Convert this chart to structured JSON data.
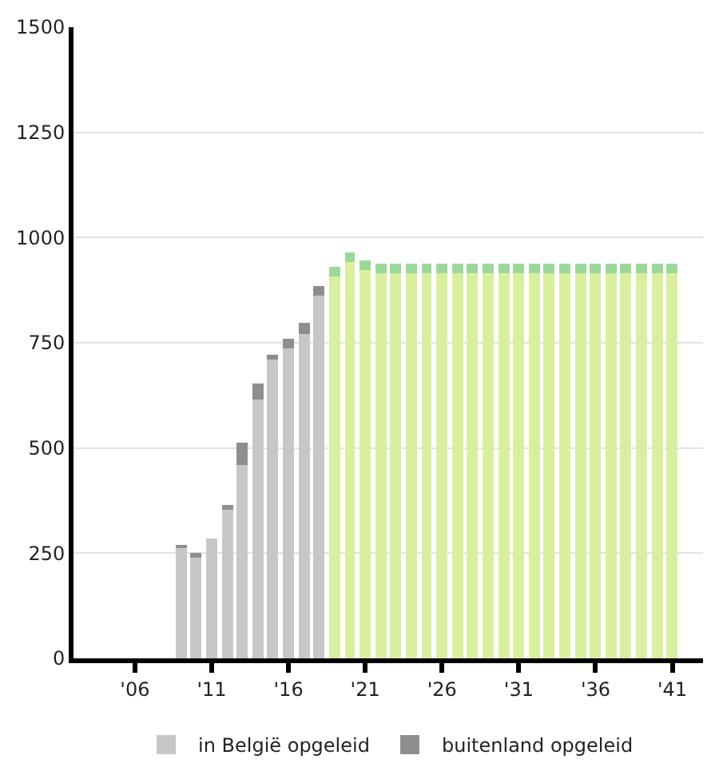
{
  "chart_data": {
    "type": "bar",
    "stacked": true,
    "x": [
      2009,
      2010,
      2011,
      2012,
      2013,
      2014,
      2015,
      2016,
      2017,
      2018,
      2019,
      2020,
      2021,
      2022,
      2023,
      2024,
      2025,
      2026,
      2027,
      2028,
      2029,
      2030,
      2031,
      2032,
      2033,
      2034,
      2035,
      2036,
      2037,
      2038,
      2039,
      2040,
      2041
    ],
    "series": [
      {
        "name": "in België opgeleid",
        "colors": [
          "#c8c7c8",
          "#c8c7c8",
          "#c8c7c8",
          "#c8c7c8",
          "#c8c7c8",
          "#c8c7c8",
          "#c8c7c8",
          "#c8c7c8",
          "#c8c7c8",
          "#c8c7c8",
          "#d9efa0",
          "#d9efa0",
          "#d9efa0",
          "#d9efa0",
          "#d9efa0",
          "#d9efa0",
          "#d9efa0",
          "#d9efa0",
          "#d9efa0",
          "#d9efa0",
          "#d9efa0",
          "#d9efa0",
          "#d9efa0",
          "#d9efa0",
          "#d9efa0",
          "#d9efa0",
          "#d9efa0",
          "#d9efa0",
          "#d9efa0",
          "#d9efa0",
          "#d9efa0",
          "#d9efa0",
          "#d9efa0"
        ],
        "values": [
          262,
          241,
          283,
          353,
          461,
          615,
          711,
          736,
          770,
          862,
          909,
          941,
          924,
          916,
          916,
          916,
          916,
          916,
          916,
          916,
          916,
          916,
          916,
          916,
          916,
          916,
          916,
          916,
          916,
          916,
          916,
          916,
          916
        ]
      },
      {
        "name": "buitenland opgeleid",
        "colors": [
          "#8f8e8f",
          "#8f8e8f",
          "#8f8e8f",
          "#8f8e8f",
          "#8f8e8f",
          "#8f8e8f",
          "#8f8e8f",
          "#8f8e8f",
          "#8f8e8f",
          "#8f8e8f",
          "#9bd99a",
          "#9bd99a",
          "#9bd99a",
          "#9bd99a",
          "#9bd99a",
          "#9bd99a",
          "#9bd99a",
          "#9bd99a",
          "#9bd99a",
          "#9bd99a",
          "#9bd99a",
          "#9bd99a",
          "#9bd99a",
          "#9bd99a",
          "#9bd99a",
          "#9bd99a",
          "#9bd99a",
          "#9bd99a",
          "#9bd99a",
          "#9bd99a",
          "#9bd99a",
          "#9bd99a",
          "#9bd99a"
        ],
        "values": [
          8,
          8,
          0,
          13,
          51,
          39,
          11,
          24,
          28,
          23,
          23,
          24,
          22,
          22,
          22,
          22,
          22,
          22,
          22,
          22,
          22,
          22,
          22,
          22,
          22,
          22,
          22,
          22,
          22,
          22,
          22,
          22,
          22
        ]
      }
    ],
    "xlim": [
      2002,
      2043
    ],
    "xticks": [
      {
        "value": 2006,
        "label": "'06"
      },
      {
        "value": 2011,
        "label": "'11"
      },
      {
        "value": 2016,
        "label": "'16"
      },
      {
        "value": 2021,
        "label": "'21"
      },
      {
        "value": 2026,
        "label": "'26"
      },
      {
        "value": 2031,
        "label": "'31"
      },
      {
        "value": 2036,
        "label": "'36"
      },
      {
        "value": 2041,
        "label": "'41"
      }
    ],
    "ylim": [
      0,
      1500
    ],
    "yticks": [
      0,
      250,
      500,
      750,
      1000,
      1250,
      1500
    ],
    "grid": "y",
    "legend": "bottom"
  }
}
